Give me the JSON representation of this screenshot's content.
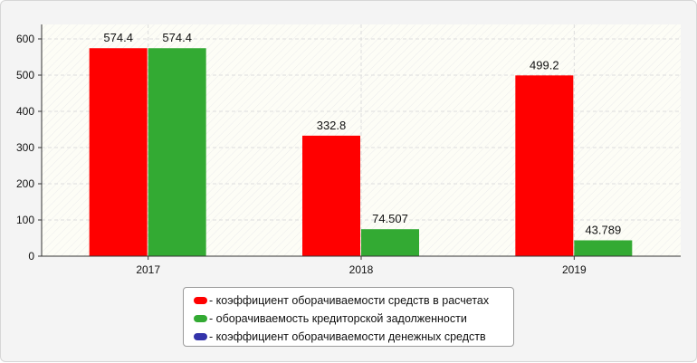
{
  "chart_data": {
    "type": "bar",
    "categories": [
      "2017",
      "2018",
      "2019"
    ],
    "series": [
      {
        "name": "коэффициент оборачиваемости средств в расчетах",
        "color": "#ff0000",
        "values": [
          574.4,
          332.8,
          499.2
        ],
        "labels": [
          "574.4",
          "332.8",
          "499.2"
        ]
      },
      {
        "name": "оборачиваемость кредиторской задолженности",
        "color": "#33aa33",
        "values": [
          574.4,
          74.507,
          43.789
        ],
        "labels": [
          "574.4",
          "74.507",
          "43.789"
        ]
      },
      {
        "name": "коэффициент оборачиваемости денежных средств",
        "color": "#3333aa",
        "values": [
          null,
          null,
          null
        ],
        "labels": []
      }
    ],
    "ylim": [
      0,
      640
    ],
    "yticks": [
      0,
      100,
      200,
      300,
      400,
      500,
      600
    ],
    "grid": true,
    "legend_position": "bottom",
    "title": "",
    "xlabel": "",
    "ylabel": ""
  },
  "legend": {
    "items": [
      {
        "label": "- коэффициент оборачиваемости средств в расчетах",
        "color": "#ff0000"
      },
      {
        "label": "- оборачиваемость кредиторской задолженности",
        "color": "#33aa33"
      },
      {
        "label": "- коэффициент оборачиваемости денежных средств",
        "color": "#3333aa"
      }
    ]
  }
}
